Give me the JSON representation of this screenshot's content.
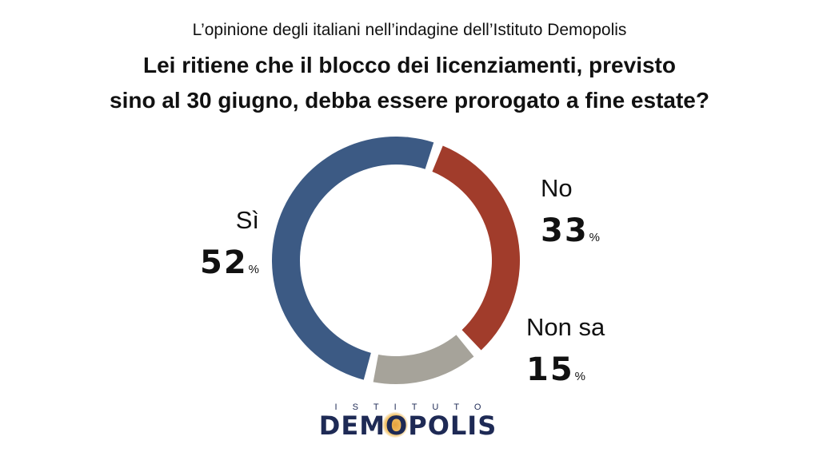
{
  "header": {
    "subtitle": "L’opinione degli italiani nell’indagine dell’Istituto Demopolis",
    "title_line1": "Lei ritiene che il blocco dei licenziamenti, previsto",
    "title_line2": "sino al 30 giugno, debba essere prorogato a fine estate?"
  },
  "chart_data": {
    "type": "pie",
    "style": "donut",
    "title": "Lei ritiene che il blocco dei licenziamenti, previsto sino al 30 giugno, debba essere prorogato a fine estate?",
    "unit": "%",
    "slices": [
      {
        "label": "No",
        "value": 33,
        "display": "33",
        "color": "#a13c2b"
      },
      {
        "label": "Non sa",
        "value": 15,
        "display": "15",
        "color": "#a6a39a"
      },
      {
        "label": "Sì",
        "value": 52,
        "display": "52",
        "color": "#3c5a84"
      }
    ]
  },
  "logo": {
    "top": "ISTITUTO",
    "main_before": "DEM",
    "main_o": "O",
    "main_after": "POLIS"
  }
}
